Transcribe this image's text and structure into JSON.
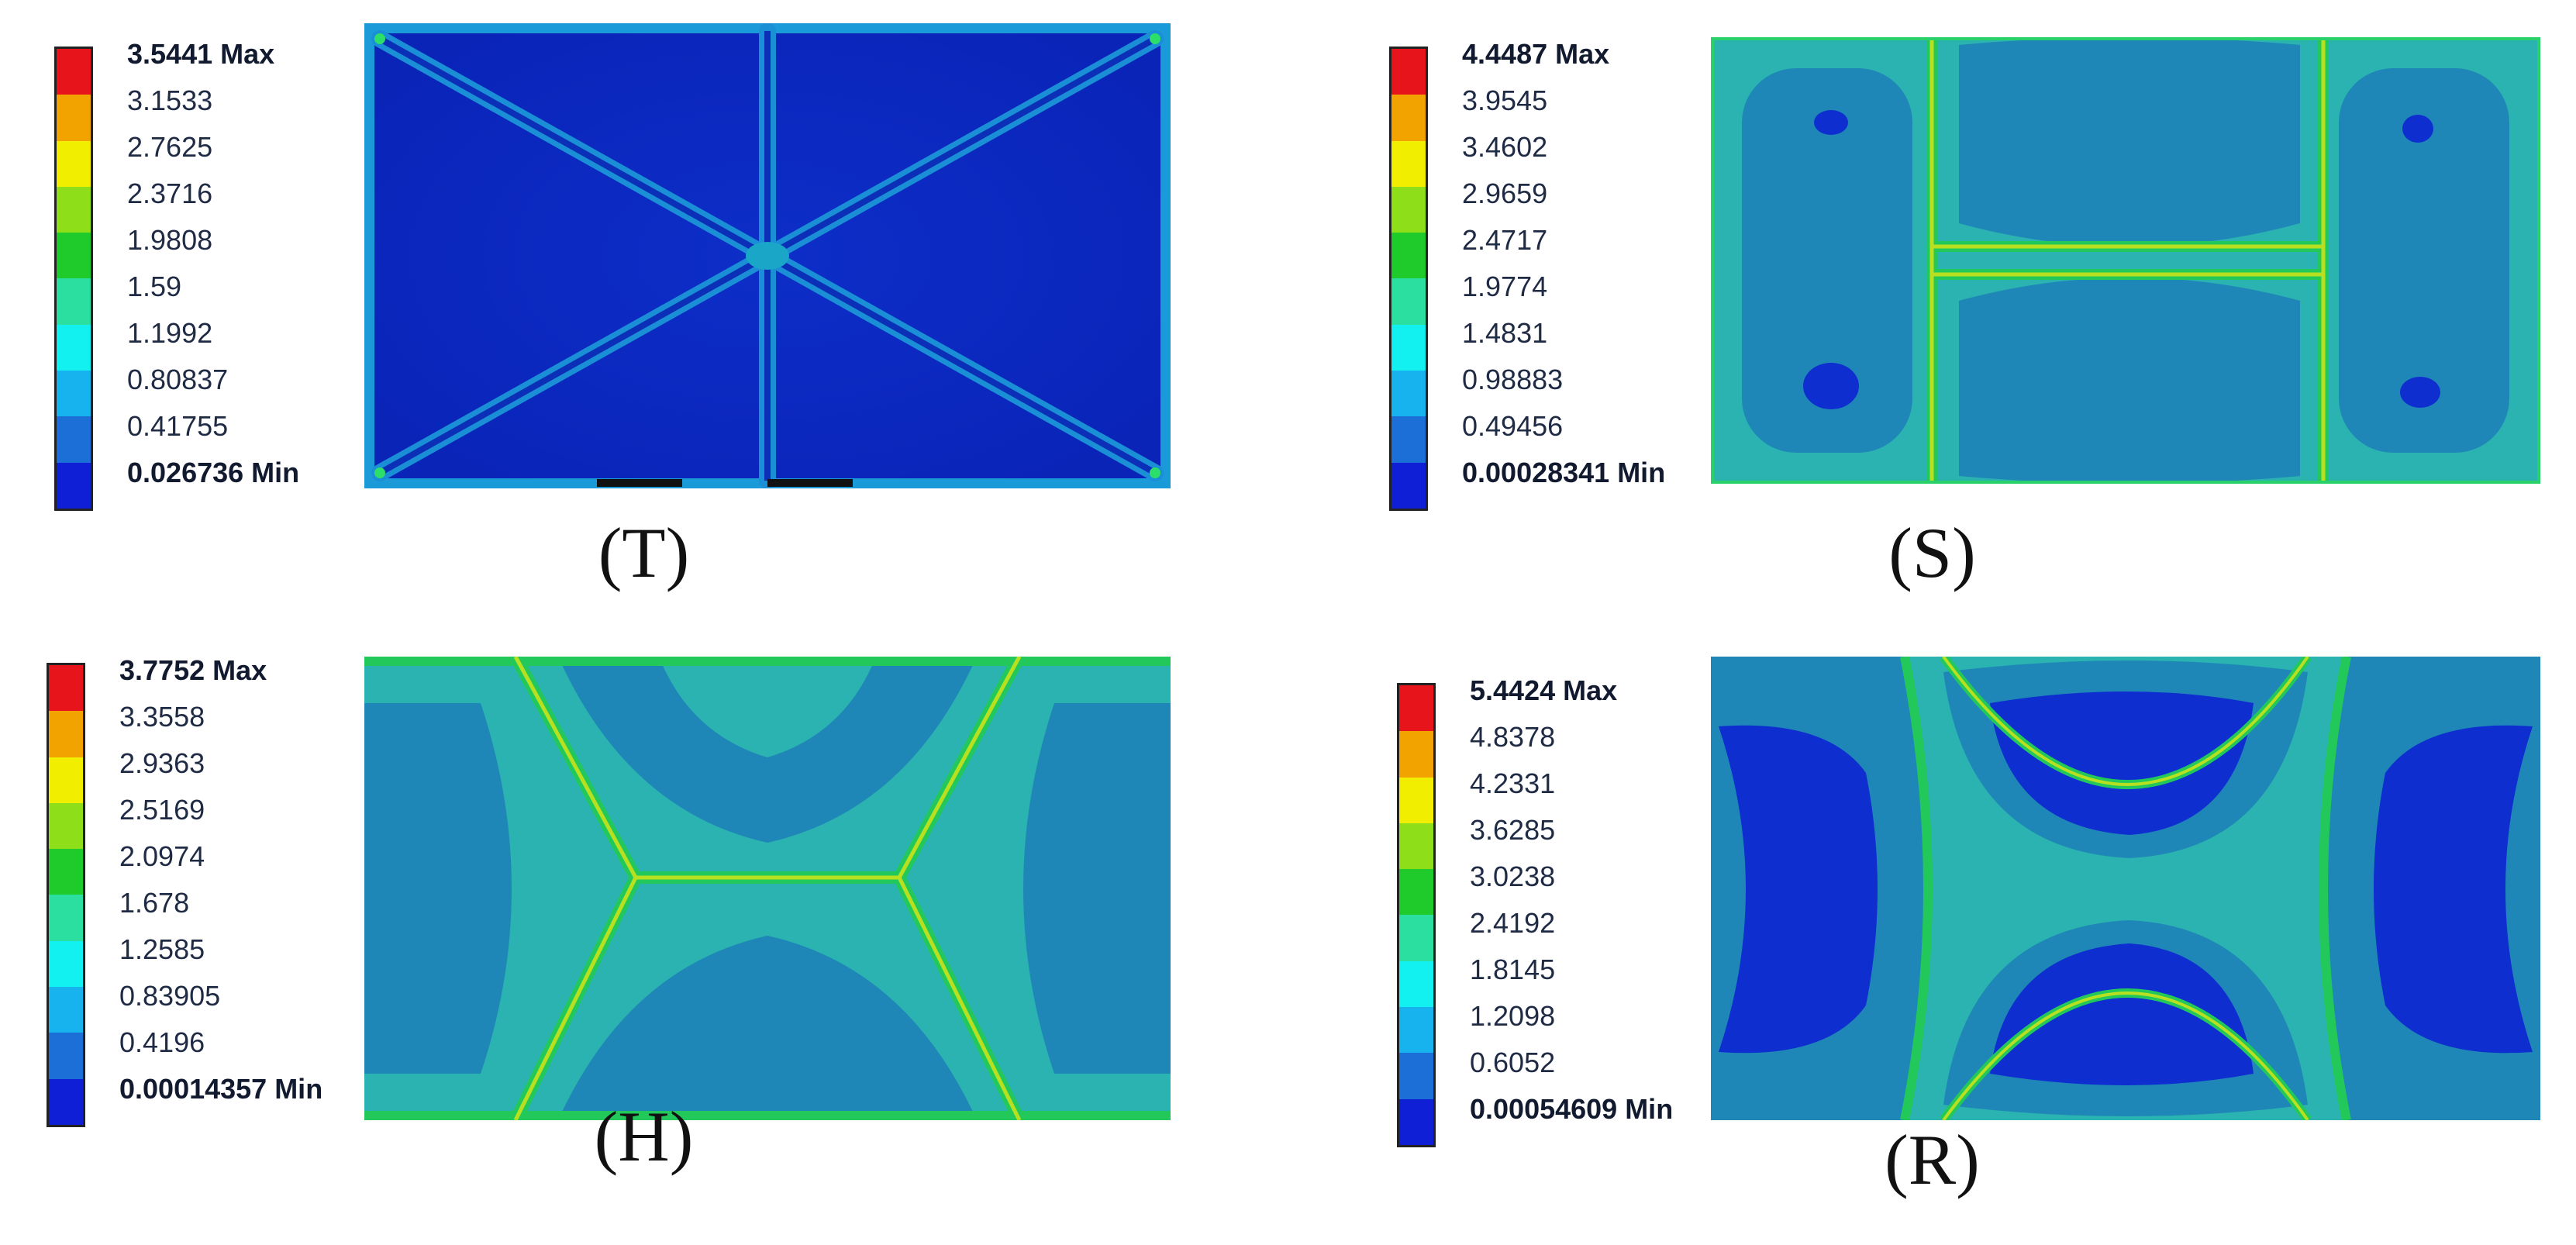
{
  "panels": [
    {
      "id": "T",
      "label": "(T)",
      "legend": [
        "3.5441 Max",
        "3.1533",
        "2.7625",
        "2.3716",
        "1.9808",
        "1.59",
        "1.1992",
        "0.80837",
        "0.41755",
        "0.026736 Min"
      ]
    },
    {
      "id": "S",
      "label": "(S)",
      "legend": [
        "4.4487 Max",
        "3.9545",
        "3.4602",
        "2.9659",
        "2.4717",
        "1.9774",
        "1.4831",
        "0.98883",
        "0.49456",
        "0.00028341 Min"
      ]
    },
    {
      "id": "H",
      "label": "(H)",
      "legend": [
        "3.7752 Max",
        "3.3558",
        "2.9363",
        "2.5169",
        "2.0974",
        "1.678",
        "1.2585",
        "0.83905",
        "0.4196",
        "0.00014357 Min"
      ]
    },
    {
      "id": "R",
      "label": "(R)",
      "legend": [
        "5.4424 Max",
        "4.8378",
        "4.2331",
        "3.6285",
        "3.0238",
        "2.4192",
        "1.8145",
        "1.2098",
        "0.6052",
        "0.00054609 Min"
      ]
    }
  ],
  "colormap": [
    "#e8141c",
    "#f2a300",
    "#f2ee00",
    "#8ede1a",
    "#1fcb2a",
    "#2bdfa0",
    "#13f0f0",
    "#16b3ee",
    "#1d6fd8",
    "#0e1fd6"
  ]
}
